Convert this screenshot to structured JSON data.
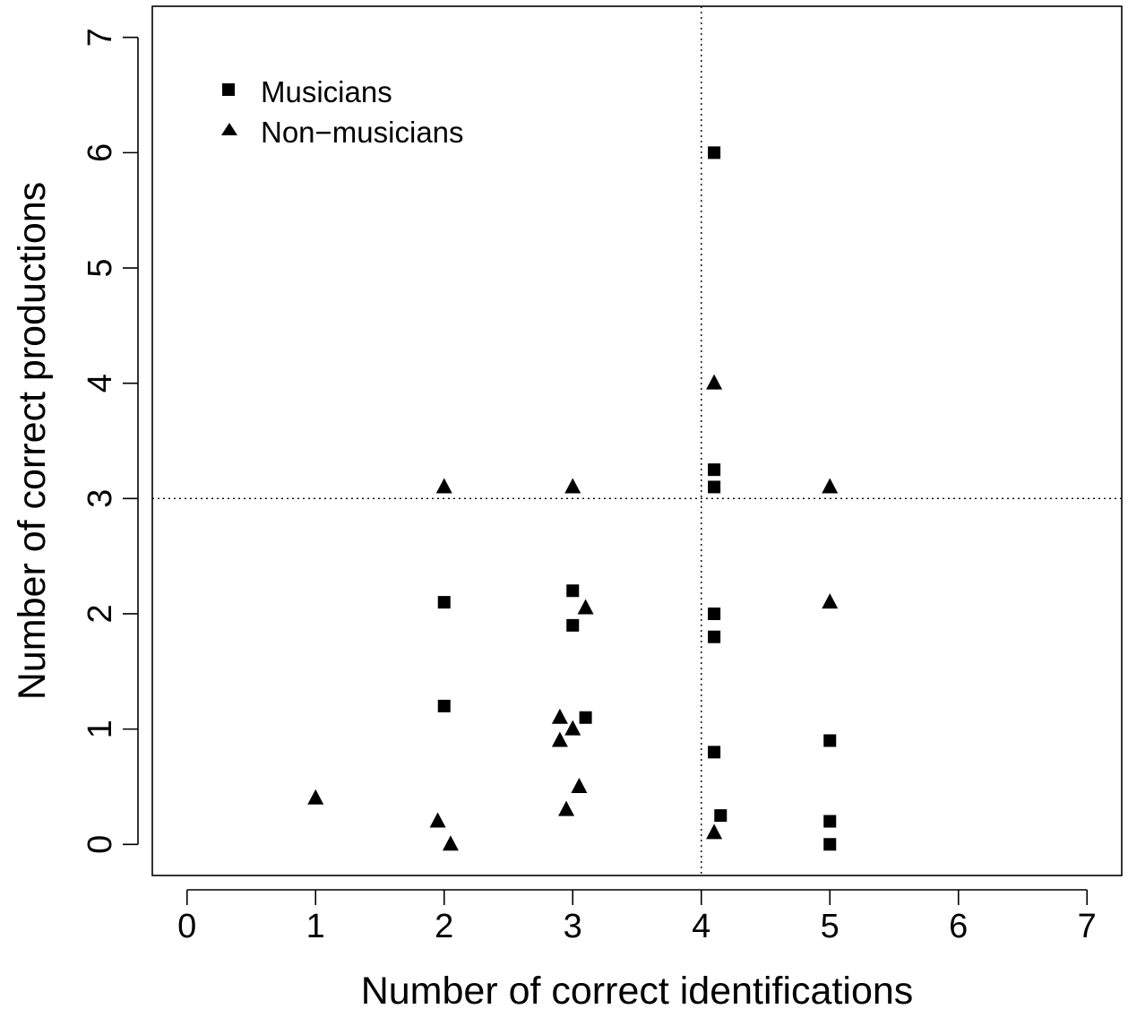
{
  "chart_data": {
    "type": "scatter",
    "xlabel": "Number of correct identifications",
    "ylabel": "Number of correct productions",
    "xlim": [
      -0.27,
      7.27
    ],
    "ylim": [
      -0.27,
      7.27
    ],
    "xticks": [
      0,
      1,
      2,
      3,
      4,
      5,
      6,
      7
    ],
    "yticks": [
      0,
      1,
      2,
      3,
      4,
      5,
      6,
      7
    ],
    "grid": false,
    "legend_position": "top-left",
    "reference_lines": [
      {
        "axis": "x",
        "value": 4,
        "style": "dotted"
      },
      {
        "axis": "y",
        "value": 3,
        "style": "dotted"
      }
    ],
    "series": [
      {
        "name": "Musicians",
        "marker": "square",
        "points": [
          {
            "x": 4.1,
            "y": 6.0
          },
          {
            "x": 4.1,
            "y": 3.25
          },
          {
            "x": 4.1,
            "y": 3.1
          },
          {
            "x": 2.0,
            "y": 2.1
          },
          {
            "x": 3.0,
            "y": 2.2
          },
          {
            "x": 3.0,
            "y": 1.9
          },
          {
            "x": 4.1,
            "y": 2.0
          },
          {
            "x": 4.1,
            "y": 1.8
          },
          {
            "x": 2.0,
            "y": 1.2
          },
          {
            "x": 3.1,
            "y": 1.1
          },
          {
            "x": 4.1,
            "y": 0.8
          },
          {
            "x": 5.0,
            "y": 0.9
          },
          {
            "x": 4.15,
            "y": 0.25
          },
          {
            "x": 5.0,
            "y": 0.2
          },
          {
            "x": 5.0,
            "y": 0.0
          }
        ]
      },
      {
        "name": "Non−musicians",
        "marker": "triangle",
        "points": [
          {
            "x": 4.1,
            "y": 4.0
          },
          {
            "x": 2.0,
            "y": 3.1
          },
          {
            "x": 3.0,
            "y": 3.1
          },
          {
            "x": 5.0,
            "y": 3.1
          },
          {
            "x": 3.1,
            "y": 2.05
          },
          {
            "x": 5.0,
            "y": 2.1
          },
          {
            "x": 2.9,
            "y": 1.1
          },
          {
            "x": 3.0,
            "y": 1.0
          },
          {
            "x": 2.9,
            "y": 0.9
          },
          {
            "x": 3.05,
            "y": 0.5
          },
          {
            "x": 2.95,
            "y": 0.3
          },
          {
            "x": 1.0,
            "y": 0.4
          },
          {
            "x": 1.95,
            "y": 0.2
          },
          {
            "x": 2.05,
            "y": 0.0
          },
          {
            "x": 4.1,
            "y": 0.1
          }
        ]
      }
    ]
  }
}
